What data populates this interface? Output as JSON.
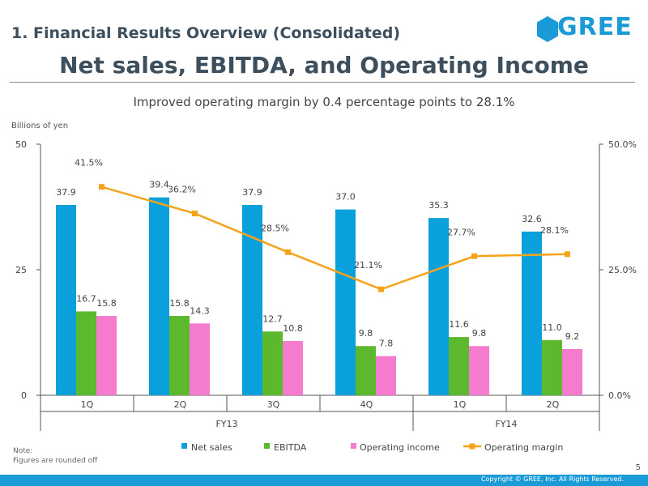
{
  "header": {
    "section_title": "1. Financial Results Overview (Consolidated)",
    "logo_text": "GREE",
    "main_title": "Net sales, EBITDA, and Operating Income",
    "subtitle": "Improved operating margin by 0.4 percentage points to 28.1%"
  },
  "colors": {
    "net_sales": "#0aa0dc",
    "ebitda": "#5cb82c",
    "operating_income": "#f57bcf",
    "operating_margin": "#f5a31b",
    "brand": "#1a9ad6"
  },
  "chart_data": {
    "type": "bar",
    "title": "Net sales, EBITDA, and Operating Income",
    "ylabel": "Billions of yen",
    "ylim": [
      0,
      50
    ],
    "y_ticks": [
      "0",
      "25",
      "50"
    ],
    "y2lim": [
      0,
      50
    ],
    "y2_ticks": [
      "0.0%",
      "25.0%",
      "50.0%"
    ],
    "categories": [
      "1Q",
      "2Q",
      "3Q",
      "4Q",
      "1Q",
      "2Q"
    ],
    "groups": [
      {
        "label": "FY13",
        "count": 4
      },
      {
        "label": "FY14",
        "count": 2
      }
    ],
    "series": [
      {
        "name": "Net sales",
        "kind": "bar",
        "values": [
          37.9,
          39.4,
          37.9,
          37.0,
          35.3,
          32.6
        ],
        "labels": [
          "37.9",
          "39.4",
          "37.9",
          "37.0",
          "35.3",
          "32.6"
        ]
      },
      {
        "name": "EBITDA",
        "kind": "bar",
        "values": [
          16.7,
          15.8,
          12.7,
          9.8,
          11.6,
          11.0
        ],
        "labels": [
          "16.7",
          "15.8",
          "12.7",
          "9.8",
          "11.6",
          "11.0"
        ]
      },
      {
        "name": "Operating income",
        "kind": "bar",
        "values": [
          15.8,
          14.3,
          10.8,
          7.8,
          9.8,
          9.2
        ],
        "labels": [
          "15.8",
          "14.3",
          "10.8",
          "7.8",
          "9.8",
          "9.2"
        ]
      },
      {
        "name": "Operating margin",
        "kind": "line",
        "axis": "right",
        "values": [
          41.5,
          36.2,
          28.5,
          21.1,
          27.7,
          28.1
        ],
        "labels": [
          "41.5%",
          "36.2%",
          "28.5%",
          "21.1%",
          "27.7%",
          "28.1%"
        ]
      }
    ],
    "legend_position": "bottom"
  },
  "footer": {
    "note_title": "Note:",
    "note_text": "Figures are rounded off",
    "page_number": "5",
    "copyright": "Copyright © GREE, Inc. All Rights Reserved."
  }
}
